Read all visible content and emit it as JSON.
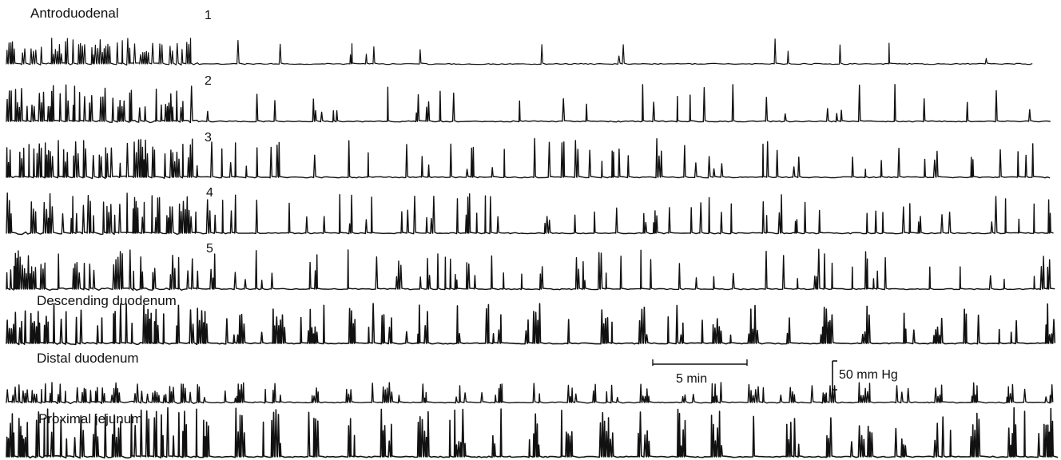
{
  "chart_data": {
    "type": "line",
    "title": "",
    "xlabel": "",
    "ylabel": "",
    "grid": false,
    "legend": "none",
    "ink_color": "#111111",
    "background_color": "#ffffff",
    "group_labels": {
      "antroduodenal": "Antroduodenal",
      "descending": "Descending duodenum",
      "distal": "Distal duodenum",
      "jejunum": "Proximal jejunum"
    },
    "channels": [
      {
        "id": "ch1",
        "label": "1",
        "group": "Antroduodenal",
        "burst_density": 0.12,
        "amp_scale": 0.85
      },
      {
        "id": "ch2",
        "label": "2",
        "group": "Antroduodenal",
        "burst_density": 0.28,
        "amp_scale": 0.9
      },
      {
        "id": "ch3",
        "label": "3",
        "group": "Antroduodenal",
        "burst_density": 0.55,
        "amp_scale": 0.9
      },
      {
        "id": "ch4",
        "label": "4",
        "group": "Antroduodenal",
        "burst_density": 0.62,
        "amp_scale": 0.9
      },
      {
        "id": "ch5",
        "label": "5",
        "group": "Antroduodenal",
        "burst_density": 0.68,
        "amp_scale": 0.9
      },
      {
        "id": "desc",
        "label": "",
        "group": "Descending duodenum",
        "burst_density": 0.75,
        "amp_scale": 1.0
      },
      {
        "id": "dist",
        "label": "",
        "group": "Distal duodenum",
        "burst_density": 0.6,
        "amp_scale": 0.7
      },
      {
        "id": "jej",
        "label": "",
        "group": "Proximal jejunum",
        "burst_density": 0.6,
        "amp_scale": 1.1
      }
    ],
    "scale_bars": {
      "time": {
        "label": "5 min",
        "minutes": 5
      },
      "pressure": {
        "label": "50 mm Hg",
        "mmHg": 50
      }
    }
  }
}
